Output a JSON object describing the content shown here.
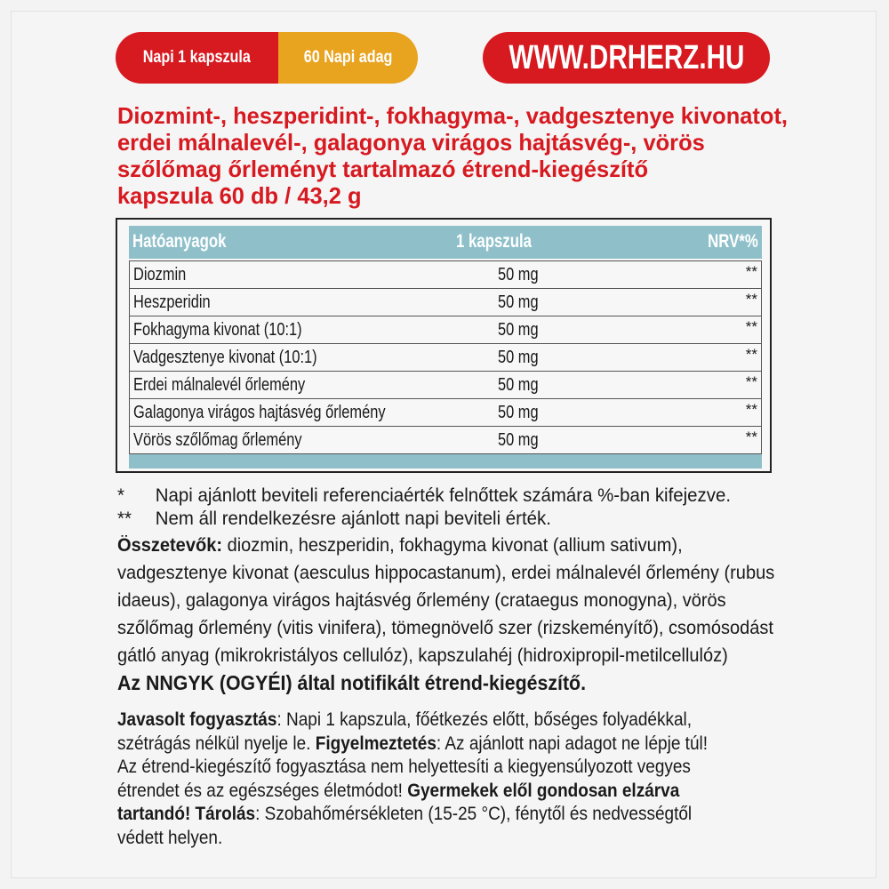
{
  "badges": {
    "dose": "Napi 1 kapszula",
    "servings": "60 Napi adag",
    "url": "WWW.DRHERZ.HU"
  },
  "colors": {
    "red": "#d71920",
    "orange": "#e8a31f",
    "teal": "#8fc0ca"
  },
  "title_lines": [
    "Diozmint-, heszperidint-, fokhagyma-, vadgesztenye kivonatot,",
    "erdei málnalevél-, galagonya virágos hajtásvég-, vörös",
    "szőlőmag őrleményt tartalmazó étrend-kiegészítő",
    "kapszula 60 db / 43,2 g"
  ],
  "table": {
    "headers": [
      "Hatóanyagok",
      "1 kapszula",
      "NRV*%"
    ],
    "rows": [
      {
        "name": "Diozmin",
        "amount": "50 mg",
        "nrv": "**"
      },
      {
        "name": "Heszperidin",
        "amount": "50 mg",
        "nrv": "**"
      },
      {
        "name": "Fokhagyma kivonat (10:1)",
        "amount": "50 mg",
        "nrv": "**"
      },
      {
        "name": "Vadgesztenye kivonat (10:1)",
        "amount": "50 mg",
        "nrv": "**"
      },
      {
        "name": "Erdei málnalevél őrlemény",
        "amount": "50 mg",
        "nrv": "**"
      },
      {
        "name": "Galagonya virágos hajtásvég őrlemény",
        "amount": "50 mg",
        "nrv": "**"
      },
      {
        "name": "Vörös szőlőmag őrlemény",
        "amount": "50 mg",
        "nrv": "**"
      }
    ]
  },
  "footnotes": [
    {
      "mark": "*",
      "text": "Napi ajánlott beviteli referenciaérték felnőttek számára %-ban kifejezve."
    },
    {
      "mark": "**",
      "text": "Nem áll rendelkezésre ajánlott napi beviteli érték."
    }
  ],
  "ingredients_lines": [
    [
      {
        "t": "Összetevők:",
        "b": true
      },
      {
        "t": " diozmin, heszperidin, fokhagyma kivonat (allium sativum),"
      }
    ],
    [
      {
        "t": "vadgesztenye kivonat (aesculus hippocastanum), erdei málnalevél őrlemény (rubus"
      }
    ],
    [
      {
        "t": "idaeus), galagonya virágos hajtásvég őrlemény (crataegus monogyna), vörös"
      }
    ],
    [
      {
        "t": "szőlőmag őrlemény (vitis vinifera), tömegnövelő szer (rizskeményítő), csomósodást"
      }
    ],
    [
      {
        "t": "gátló anyag (mikrokristályos cellulóz), kapszulahéj (hidroxipropil-metilcellulóz)"
      }
    ]
  ],
  "notification": "Az NNGYK (OGYÉI) által notifikált étrend-kiegészítő.",
  "usage_lines": [
    [
      {
        "t": "Javasolt fogyasztás",
        "b": true
      },
      {
        "t": ": Napi 1 kapszula, főétkezés előtt, bőséges folyadékkal,"
      }
    ],
    [
      {
        "t": "szétrágás nélkül nyelje le. "
      },
      {
        "t": "Figyelmeztetés",
        "b": true
      },
      {
        "t": ": Az ajánlott napi adagot ne lépje túl!"
      }
    ],
    [
      {
        "t": "Az étrend-kiegészítő fogyasztása nem helyettesíti a kiegyensúlyozott vegyes"
      }
    ],
    [
      {
        "t": "étrendet és az egészséges életmódot! "
      },
      {
        "t": "Gyermekek elől gondosan elzárva",
        "b": true
      }
    ],
    [
      {
        "t": "tartandó! Tárolás",
        "b": true
      },
      {
        "t": ": Szobahőmérsékleten (15-25 °C), fénytől és nedvességtől"
      }
    ],
    [
      {
        "t": "védett helyen."
      }
    ]
  ]
}
